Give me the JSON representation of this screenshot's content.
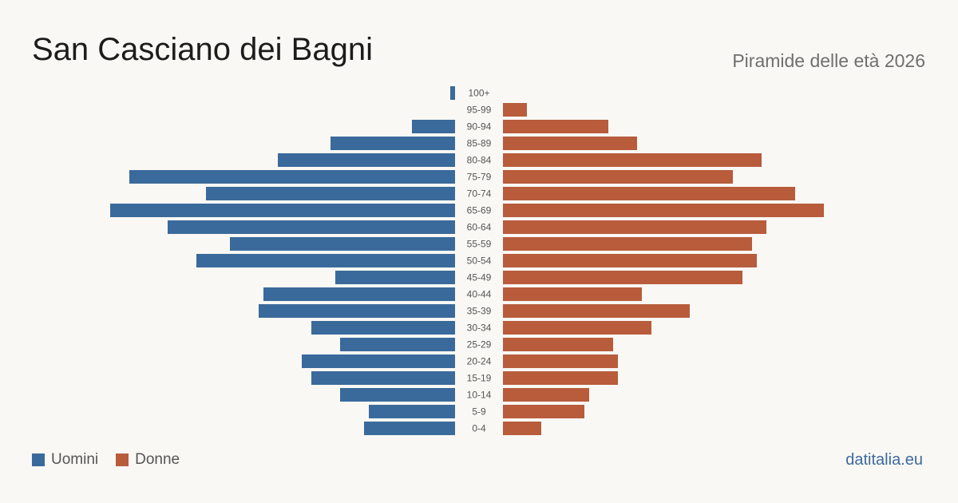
{
  "header": {
    "title": "San Casciano dei Bagni",
    "subtitle": "Piramide delle età 2026"
  },
  "legend": {
    "men_label": "Uomini",
    "women_label": "Donne"
  },
  "footer": {
    "site": "datitalia.eu"
  },
  "colors": {
    "men": "#3a6a9b",
    "women": "#b85c3c",
    "background": "#f9f8f4"
  },
  "chart_data": {
    "type": "bar",
    "orientation": "horizontal-pyramid",
    "title": "San Casciano dei Bagni",
    "subtitle": "Piramide delle età 2026",
    "xlabel": "",
    "ylabel": "",
    "legend_placement": "bottom-left",
    "grid": false,
    "categories": [
      "100+",
      "95-99",
      "90-94",
      "85-89",
      "80-84",
      "75-79",
      "70-74",
      "65-69",
      "60-64",
      "55-59",
      "50-54",
      "45-49",
      "40-44",
      "35-39",
      "30-34",
      "25-29",
      "20-24",
      "15-19",
      "10-14",
      "5-9",
      "0-4"
    ],
    "series": [
      {
        "name": "Uomini",
        "values": [
          1,
          0,
          9,
          26,
          37,
          68,
          52,
          72,
          60,
          47,
          54,
          25,
          40,
          41,
          30,
          24,
          32,
          30,
          24,
          18,
          19
        ]
      },
      {
        "name": "Donne",
        "values": [
          0,
          5,
          22,
          28,
          54,
          48,
          61,
          67,
          55,
          52,
          53,
          50,
          29,
          39,
          31,
          23,
          24,
          24,
          18,
          17,
          8
        ]
      }
    ]
  }
}
